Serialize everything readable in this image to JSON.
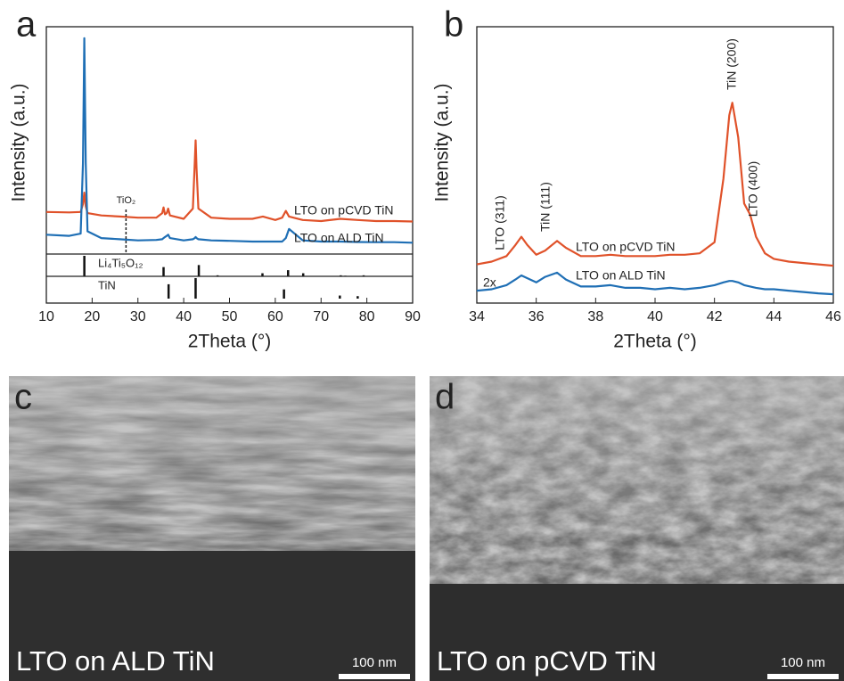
{
  "chart_data": [
    {
      "type": "line",
      "label": "a",
      "x_label": "2Theta (°)",
      "y_label": "Intensity (a.u.)",
      "x": [
        10,
        15,
        17.5,
        18.0,
        18.3,
        18.6,
        19,
        22,
        26,
        30,
        34,
        35.3,
        35.6,
        35.9,
        36.3,
        36.6,
        37,
        40,
        42.0,
        42.4,
        42.6,
        42.8,
        43.2,
        46,
        50,
        55,
        57.3,
        60,
        61.5,
        62.3,
        63,
        66,
        70,
        74.2,
        78,
        82,
        86,
        90
      ],
      "series": [
        {
          "name": "LTO on pCVD TiN",
          "color": "#e0522a",
          "values": [
            18.5,
            18.3,
            18.5,
            22,
            27,
            21,
            18,
            17,
            16.5,
            16,
            16,
            18,
            20.5,
            17.5,
            18,
            20,
            17,
            15.5,
            20,
            40,
            50,
            38,
            20,
            16,
            15.5,
            15.5,
            16.5,
            15,
            16,
            19,
            16.5,
            15,
            14.5,
            15.5,
            15,
            14.5,
            14.5,
            14.3
          ]
        },
        {
          "name": "LTO on ALD TiN",
          "color": "#1f6fb5",
          "values": [
            8.5,
            8,
            9,
            40,
            95,
            40,
            10,
            7,
            6.5,
            6,
            6.2,
            6.5,
            7,
            7.5,
            8,
            8.5,
            7,
            6,
            6.5,
            7,
            7.5,
            7,
            6.5,
            6,
            5.8,
            5.5,
            5.5,
            5.5,
            5.5,
            7,
            11,
            6,
            5.5,
            5.5,
            5.3,
            5.2,
            5.2,
            5
          ]
        }
      ],
      "xlim": [
        10,
        90
      ],
      "xticks": [
        10,
        20,
        30,
        40,
        50,
        60,
        70,
        80,
        90
      ],
      "ylim": [
        0,
        100
      ],
      "reference_lines": [
        {
          "label": "TiO₂",
          "x": 27.4
        }
      ],
      "reference_patterns": [
        {
          "name": "Li₄Ti₅O₁₂",
          "positions": [
            18.3,
            35.6,
            43.3,
            47.4,
            57.2,
            62.8,
            66.1,
            74.3,
            75.3,
            79.3
          ],
          "heights": [
            100,
            45,
            55,
            5,
            15,
            30,
            15,
            5,
            3,
            5
          ]
        },
        {
          "name": "TiN",
          "positions": [
            36.7,
            42.6,
            61.9,
            74.1,
            78.0
          ],
          "heights": [
            70,
            100,
            45,
            15,
            12
          ]
        }
      ]
    },
    {
      "type": "line",
      "label": "b",
      "x_label": "2Theta (°)",
      "y_label": "Intensity (a.u.)",
      "x": [
        34,
        34.5,
        35,
        35.3,
        35.5,
        35.7,
        36,
        36.3,
        36.7,
        37,
        37.5,
        38,
        38.5,
        39,
        39.5,
        40,
        40.5,
        41,
        41.5,
        42,
        42.3,
        42.5,
        42.6,
        42.8,
        43,
        43.2,
        43.4,
        43.7,
        44,
        44.5,
        45,
        45.5,
        46
      ],
      "series": [
        {
          "name": "LTO on pCVD TiN",
          "color": "#e0522a",
          "values": [
            14,
            15,
            17,
            21,
            24,
            21,
            17.5,
            19,
            22.5,
            20,
            17,
            17,
            17.5,
            17,
            17,
            17,
            17.5,
            17.5,
            18,
            22,
            45,
            68,
            72.5,
            60,
            36,
            32,
            24,
            18,
            16,
            15,
            14.5,
            14,
            13.5
          ]
        },
        {
          "name": "LTO on ALD TiN",
          "color": "#1f6fb5",
          "values": [
            4.5,
            5,
            6.5,
            8.5,
            10,
            9,
            7.5,
            9.5,
            11,
            8.5,
            6,
            6,
            6.5,
            5.5,
            5.5,
            5,
            5.5,
            5,
            5.5,
            6.5,
            7.5,
            8,
            8,
            7.5,
            6.5,
            6,
            5.5,
            5,
            5,
            4.5,
            4,
            3.5,
            3.2
          ]
        }
      ],
      "xlim": [
        34,
        46
      ],
      "xticks": [
        34,
        36,
        38,
        40,
        42,
        44,
        46
      ],
      "ylim": [
        0,
        100
      ],
      "annotations": [
        "LTO (311)",
        "TiN (111)",
        "TiN (200)",
        "LTO (400)",
        "2x"
      ]
    }
  ],
  "images": [
    {
      "label": "c",
      "caption": "LTO on ALD TiN",
      "scale_bar": "100 nm"
    },
    {
      "label": "d",
      "caption": "LTO on pCVD TiN",
      "scale_bar": "100 nm"
    }
  ]
}
